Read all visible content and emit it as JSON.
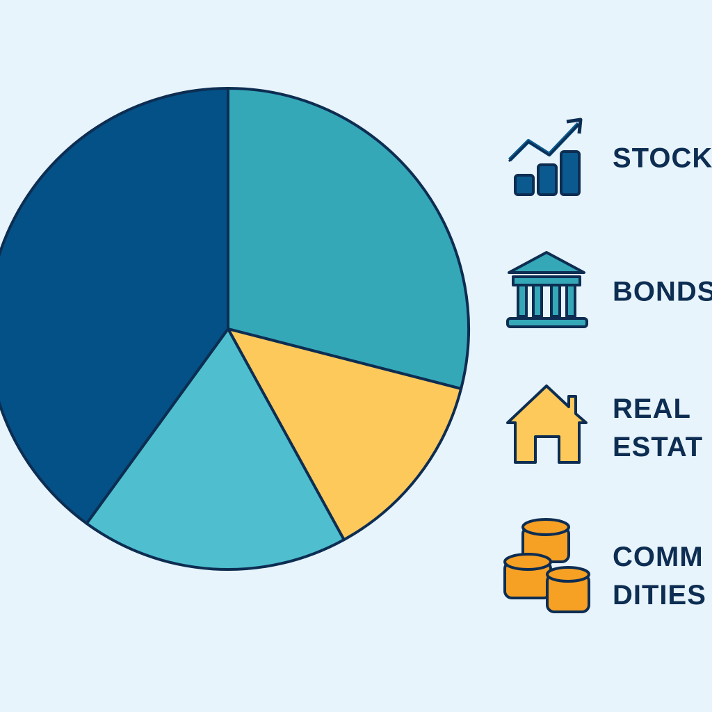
{
  "chart_data": {
    "type": "pie",
    "values": [
      29,
      13,
      18,
      40
    ],
    "colors": [
      "#35a8b8",
      "#fdc95a",
      "#4fbfcf",
      "#035186"
    ],
    "labels": [
      [
        "STOCK"
      ],
      [
        "BONDS"
      ],
      [
        "REAL",
        "ESTAT"
      ],
      [
        "COMM",
        "DITIES"
      ]
    ]
  }
}
